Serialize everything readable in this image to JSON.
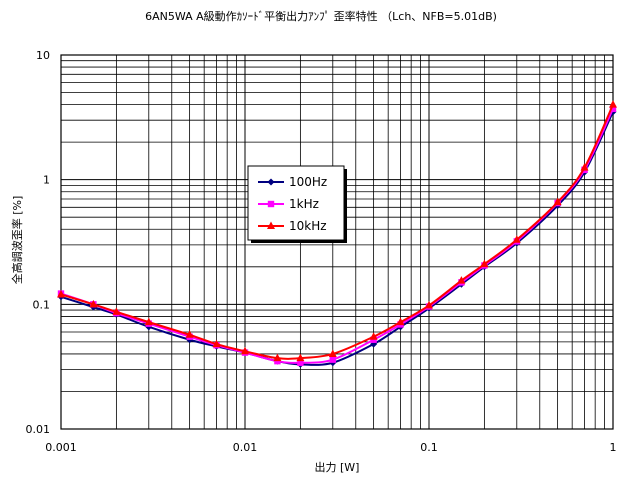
{
  "chart_data": {
    "type": "line",
    "title": "6AN5WA A級動作ｶｿｰﾄﾞ平衡出力ｱﾝﾌﾟ 歪率特性 （Lch、NFB=5.01dB)",
    "xlabel": "出力 [W]",
    "ylabel": "全高調波歪率 [%]",
    "x_scale": "log",
    "y_scale": "log",
    "xlim": [
      0.001,
      1
    ],
    "ylim": [
      0.01,
      10
    ],
    "x_ticks": [
      "0.001",
      "0.01",
      "0.1",
      "1"
    ],
    "y_ticks": [
      "10",
      "1",
      "0.1",
      "0.01"
    ],
    "grid": true,
    "legend_position": "center-left",
    "series": [
      {
        "name": "100Hz",
        "color": "#000080",
        "marker": "diamond",
        "x": [
          0.001,
          0.0015,
          0.002,
          0.003,
          0.005,
          0.007,
          0.01,
          0.015,
          0.02,
          0.03,
          0.05,
          0.07,
          0.1,
          0.15,
          0.2,
          0.3,
          0.5,
          0.7,
          1
        ],
        "y": [
          0.115,
          0.095,
          0.083,
          0.066,
          0.052,
          0.046,
          0.041,
          0.035,
          0.033,
          0.034,
          0.048,
          0.066,
          0.093,
          0.145,
          0.2,
          0.31,
          0.62,
          1.15,
          3.5
        ]
      },
      {
        "name": "1kHz",
        "color": "#ff00ff",
        "marker": "square",
        "x": [
          0.001,
          0.0015,
          0.002,
          0.003,
          0.005,
          0.007,
          0.01,
          0.015,
          0.02,
          0.03,
          0.05,
          0.07,
          0.1,
          0.15,
          0.2,
          0.3,
          0.5,
          0.7,
          1
        ],
        "y": [
          0.122,
          0.1,
          0.085,
          0.07,
          0.055,
          0.047,
          0.041,
          0.035,
          0.034,
          0.036,
          0.052,
          0.069,
          0.096,
          0.15,
          0.205,
          0.32,
          0.65,
          1.2,
          3.7
        ]
      },
      {
        "name": "10kHz",
        "color": "#ff0000",
        "marker": "triangle",
        "x": [
          0.001,
          0.0015,
          0.002,
          0.003,
          0.005,
          0.007,
          0.01,
          0.015,
          0.02,
          0.03,
          0.05,
          0.07,
          0.1,
          0.15,
          0.2,
          0.3,
          0.5,
          0.7,
          1
        ],
        "y": [
          0.12,
          0.1,
          0.087,
          0.072,
          0.057,
          0.048,
          0.042,
          0.037,
          0.037,
          0.04,
          0.055,
          0.072,
          0.098,
          0.155,
          0.21,
          0.33,
          0.66,
          1.25,
          4.0
        ]
      }
    ]
  }
}
